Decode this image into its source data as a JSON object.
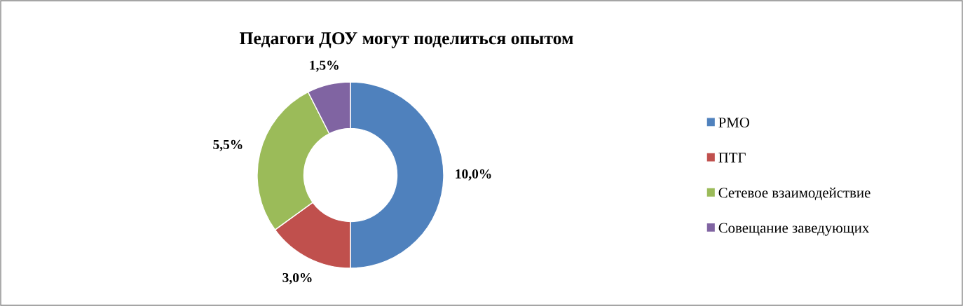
{
  "chart_data": {
    "type": "donut",
    "title": "Педагоги ДОУ могут поделиться опытом",
    "categories": [
      "РМО",
      "ПТГ",
      "Сетевое взаимодействие",
      "Совещание заведующих"
    ],
    "values": [
      10.0,
      3.0,
      5.5,
      1.5
    ],
    "value_labels": [
      "10,0%",
      "3,0%",
      "5,5%",
      "1,5%"
    ],
    "colors": [
      "#4f81bd",
      "#c0504d",
      "#9bbb59",
      "#8064a2"
    ],
    "legend": "right"
  }
}
